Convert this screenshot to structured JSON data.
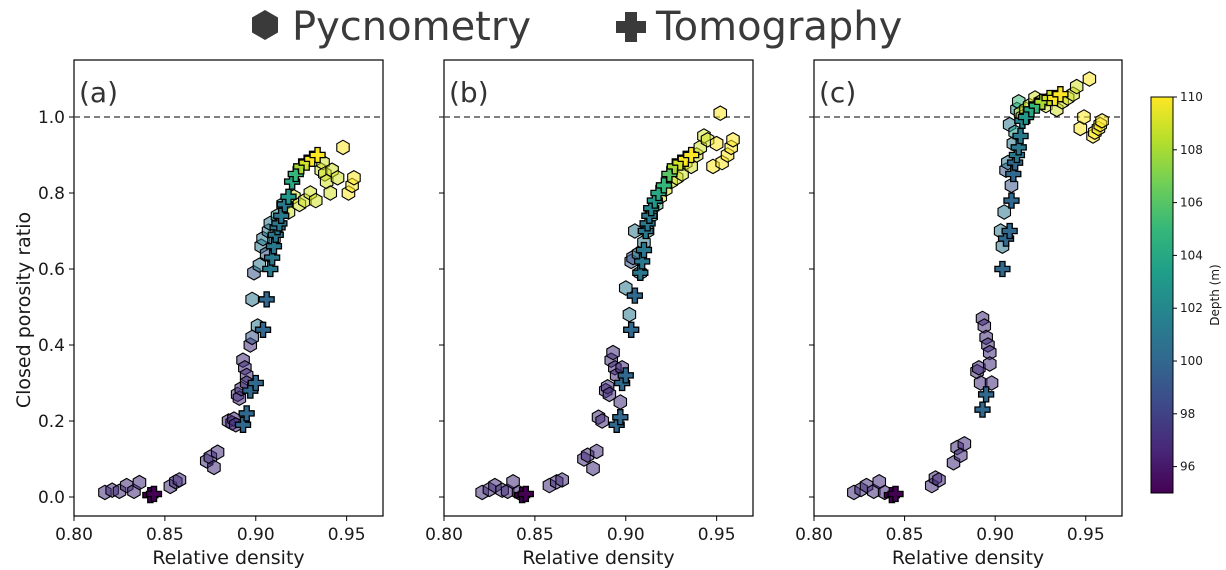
{
  "legend": {
    "items": [
      {
        "label": "Pycnometry",
        "marker": "hexagon-icon"
      },
      {
        "label": "Tomography",
        "marker": "plus-icon"
      }
    ],
    "placement": "top-center",
    "color": "#3a3a3a"
  },
  "colorbar": {
    "label": "Depth (m)",
    "ticks": [
      "96",
      "98",
      "100",
      "102",
      "104",
      "106",
      "108",
      "110"
    ],
    "range": [
      95,
      110
    ],
    "colormap": [
      "#440154",
      "#482878",
      "#3e4989",
      "#31688e",
      "#26828e",
      "#1f9e89",
      "#35b779",
      "#6ece58",
      "#b5de2b",
      "#fde725"
    ]
  },
  "axes": {
    "xlabel": "Relative density",
    "ylabel": "Closed porosity ratio",
    "xticks": [
      "0.80",
      "0.85",
      "0.90",
      "0.95"
    ],
    "yticks": [
      "0.0",
      "0.2",
      "0.4",
      "0.6",
      "0.8",
      "1.0"
    ],
    "xlim": [
      0.8,
      0.97
    ],
    "ylim": [
      -0.05,
      1.15
    ],
    "reference_line": 1.0
  },
  "chart_data": [
    {
      "type": "scatter",
      "panel": "(a)",
      "series": [
        {
          "name": "Pycnometry",
          "x": [
            0.817,
            0.821,
            0.825,
            0.829,
            0.833,
            0.836,
            0.853,
            0.856,
            0.858,
            0.873,
            0.875,
            0.877,
            0.879,
            0.885,
            0.887,
            0.888,
            0.889,
            0.89,
            0.891,
            0.892,
            0.893,
            0.894,
            0.895,
            0.895,
            0.897,
            0.898,
            0.898,
            0.899,
            0.901,
            0.902,
            0.903,
            0.904,
            0.906,
            0.907,
            0.908,
            0.91,
            0.912,
            0.915,
            0.918,
            0.921,
            0.924,
            0.927,
            0.93,
            0.933,
            0.936,
            0.937,
            0.938,
            0.939,
            0.941,
            0.942,
            0.945,
            0.948,
            0.951,
            0.953,
            0.954
          ],
          "y": [
            0.012,
            0.018,
            0.015,
            0.03,
            0.015,
            0.038,
            0.028,
            0.04,
            0.045,
            0.095,
            0.105,
            0.078,
            0.118,
            0.2,
            0.195,
            0.205,
            0.19,
            0.27,
            0.26,
            0.285,
            0.36,
            0.34,
            0.32,
            0.3,
            0.4,
            0.42,
            0.52,
            0.59,
            0.45,
            0.61,
            0.66,
            0.68,
            0.64,
            0.7,
            0.72,
            0.68,
            0.74,
            0.77,
            0.75,
            0.79,
            0.77,
            0.78,
            0.8,
            0.78,
            0.86,
            0.88,
            0.85,
            0.83,
            0.8,
            0.86,
            0.84,
            0.92,
            0.8,
            0.82,
            0.84
          ],
          "depth": [
            97,
            97,
            97,
            97,
            97,
            97,
            97,
            97,
            97,
            97,
            97,
            97,
            97,
            97,
            97,
            97,
            97,
            97,
            97,
            97,
            97,
            97,
            97,
            97,
            97,
            99,
            101,
            99,
            101,
            101,
            101,
            101,
            99,
            101,
            101,
            101,
            103,
            103,
            109,
            109,
            109,
            109,
            109,
            109,
            109,
            109,
            109,
            109,
            109,
            109,
            109,
            110,
            110,
            110,
            110
          ]
        },
        {
          "name": "Tomography",
          "x": [
            0.842,
            0.844,
            0.893,
            0.895,
            0.897,
            0.9,
            0.904,
            0.906,
            0.908,
            0.909,
            0.91,
            0.911,
            0.912,
            0.913,
            0.914,
            0.916,
            0.918,
            0.92,
            0.922,
            0.925,
            0.928,
            0.931,
            0.934
          ],
          "y": [
            0.005,
            0.008,
            0.19,
            0.22,
            0.28,
            0.3,
            0.44,
            0.52,
            0.6,
            0.63,
            0.66,
            0.69,
            0.71,
            0.72,
            0.74,
            0.77,
            0.79,
            0.83,
            0.85,
            0.87,
            0.88,
            0.89,
            0.9
          ],
          "depth": [
            95,
            95,
            100,
            100,
            100,
            100,
            100,
            100,
            101,
            101,
            101,
            101,
            101,
            101,
            101,
            101,
            103,
            104,
            105,
            108,
            109,
            110,
            110
          ]
        }
      ]
    },
    {
      "type": "scatter",
      "panel": "(b)",
      "series": [
        {
          "name": "Pycnometry",
          "x": [
            0.821,
            0.825,
            0.828,
            0.832,
            0.835,
            0.838,
            0.841,
            0.858,
            0.862,
            0.865,
            0.877,
            0.879,
            0.882,
            0.884,
            0.885,
            0.887,
            0.889,
            0.89,
            0.891,
            0.892,
            0.893,
            0.894,
            0.895,
            0.897,
            0.898,
            0.9,
            0.902,
            0.903,
            0.904,
            0.905,
            0.907,
            0.908,
            0.91,
            0.912,
            0.914,
            0.917,
            0.919,
            0.922,
            0.925,
            0.928,
            0.931,
            0.933,
            0.936,
            0.939,
            0.941,
            0.943,
            0.945,
            0.948,
            0.95,
            0.952,
            0.953,
            0.956,
            0.958,
            0.959
          ],
          "y": [
            0.012,
            0.02,
            0.03,
            0.018,
            0.015,
            0.04,
            0.012,
            0.03,
            0.04,
            0.045,
            0.1,
            0.11,
            0.075,
            0.12,
            0.21,
            0.2,
            0.28,
            0.29,
            0.27,
            0.36,
            0.38,
            0.34,
            0.32,
            0.25,
            0.34,
            0.55,
            0.48,
            0.62,
            0.63,
            0.7,
            0.64,
            0.59,
            0.67,
            0.7,
            0.74,
            0.77,
            0.79,
            0.81,
            0.83,
            0.84,
            0.85,
            0.88,
            0.87,
            0.9,
            0.92,
            0.95,
            0.94,
            0.87,
            0.93,
            1.01,
            0.88,
            0.9,
            0.92,
            0.94
          ],
          "depth": [
            97,
            97,
            97,
            97,
            97,
            97,
            97,
            97,
            97,
            97,
            97,
            97,
            97,
            97,
            97,
            97,
            97,
            97,
            97,
            97,
            97,
            97,
            97,
            97,
            97,
            101,
            101,
            99,
            99,
            101,
            101,
            101,
            101,
            103,
            103,
            105,
            109,
            109,
            109,
            109,
            109,
            109,
            109,
            109,
            109,
            109,
            109,
            110,
            110,
            110,
            110,
            110,
            110,
            110
          ]
        },
        {
          "name": "Tomography",
          "x": [
            0.843,
            0.845,
            0.895,
            0.897,
            0.898,
            0.9,
            0.903,
            0.905,
            0.908,
            0.909,
            0.91,
            0.911,
            0.912,
            0.913,
            0.914,
            0.916,
            0.918,
            0.921,
            0.924,
            0.927,
            0.93,
            0.933,
            0.936
          ],
          "y": [
            0.005,
            0.008,
            0.19,
            0.21,
            0.3,
            0.32,
            0.44,
            0.53,
            0.59,
            0.62,
            0.65,
            0.7,
            0.72,
            0.74,
            0.76,
            0.78,
            0.8,
            0.82,
            0.85,
            0.87,
            0.88,
            0.89,
            0.9
          ],
          "depth": [
            95,
            95,
            100,
            100,
            100,
            100,
            100,
            100,
            101,
            101,
            101,
            101,
            101,
            101,
            102,
            103,
            104,
            105,
            106,
            108,
            109,
            110,
            110
          ]
        }
      ]
    },
    {
      "type": "scatter",
      "panel": "(c)",
      "series": [
        {
          "name": "Pycnometry",
          "x": [
            0.822,
            0.826,
            0.829,
            0.833,
            0.836,
            0.839,
            0.865,
            0.867,
            0.869,
            0.877,
            0.879,
            0.881,
            0.883,
            0.89,
            0.891,
            0.892,
            0.893,
            0.894,
            0.895,
            0.896,
            0.897,
            0.897,
            0.898,
            0.903,
            0.904,
            0.905,
            0.906,
            0.907,
            0.908,
            0.909,
            0.91,
            0.911,
            0.912,
            0.913,
            0.914,
            0.915,
            0.917,
            0.919,
            0.922,
            0.925,
            0.928,
            0.931,
            0.934,
            0.937,
            0.94,
            0.943,
            0.945,
            0.947,
            0.949,
            0.952,
            0.954,
            0.955,
            0.957,
            0.958,
            0.959
          ],
          "y": [
            0.012,
            0.02,
            0.03,
            0.015,
            0.04,
            0.012,
            0.03,
            0.05,
            0.045,
            0.09,
            0.13,
            0.11,
            0.14,
            0.33,
            0.34,
            0.3,
            0.47,
            0.45,
            0.42,
            0.4,
            0.38,
            0.35,
            0.3,
            0.7,
            0.66,
            0.75,
            0.86,
            0.88,
            0.98,
            0.82,
            0.93,
            0.96,
            1.02,
            1.04,
            1.01,
            1.0,
            1.02,
            1.03,
            1.05,
            1.04,
            1.03,
            1.05,
            1.02,
            1.04,
            1.05,
            1.06,
            1.08,
            0.97,
            1.0,
            1.1,
            0.95,
            0.96,
            0.97,
            0.98,
            0.99
          ],
          "depth": [
            97,
            97,
            97,
            97,
            97,
            97,
            97,
            97,
            97,
            97,
            97,
            97,
            97,
            97,
            97,
            97,
            97,
            97,
            97,
            97,
            97,
            97,
            97,
            101,
            101,
            101,
            99,
            101,
            101,
            99,
            101,
            103,
            103,
            105,
            109,
            109,
            109,
            109,
            109,
            109,
            109,
            109,
            109,
            109,
            109,
            109,
            109,
            110,
            110,
            110,
            110,
            110,
            110,
            110,
            110
          ]
        },
        {
          "name": "Tomography",
          "x": [
            0.843,
            0.845,
            0.893,
            0.895,
            0.904,
            0.906,
            0.908,
            0.909,
            0.91,
            0.911,
            0.912,
            0.913,
            0.914,
            0.915,
            0.917,
            0.92,
            0.923,
            0.926,
            0.93,
            0.933,
            0.936
          ],
          "y": [
            0.005,
            0.008,
            0.23,
            0.27,
            0.6,
            0.68,
            0.7,
            0.78,
            0.85,
            0.88,
            0.9,
            0.92,
            0.95,
            0.99,
            1.0,
            1.02,
            1.03,
            1.04,
            1.05,
            1.05,
            1.06
          ],
          "depth": [
            95,
            95,
            100,
            100,
            100,
            100,
            100,
            100,
            100,
            100,
            101,
            101,
            101,
            102,
            103,
            104,
            105,
            108,
            109,
            110,
            110
          ]
        }
      ]
    }
  ]
}
